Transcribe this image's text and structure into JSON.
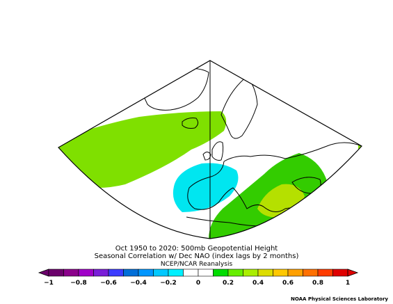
{
  "map": {
    "region": "North Atlantic / Europe (polar stereographic sector)",
    "field_colors": {
      "land_outline": "#000000",
      "positive_weak": "#7fe000",
      "positive_moderate": "#33cc00",
      "positive_strong": "#b5e000",
      "negative_weak": "#00e6f0"
    }
  },
  "titles": {
    "line1": "Oct 1950 to 2020: 500mb Geopotential Height",
    "line2": "Seasonal Correlation w/ Dec NAO (index lags by 2 months)",
    "line3": "NCEP/NCAR Reanalysis"
  },
  "colorbar": {
    "bins": [
      {
        "color": "#6b006b"
      },
      {
        "color": "#8b008b"
      },
      {
        "color": "#a000c8"
      },
      {
        "color": "#7a1ed8"
      },
      {
        "color": "#3c3cff"
      },
      {
        "color": "#006ed8"
      },
      {
        "color": "#0096ff"
      },
      {
        "color": "#00c8ff"
      },
      {
        "color": "#00f0ff"
      },
      {
        "color": "#ffffff"
      },
      {
        "color": "#ffffff"
      },
      {
        "color": "#00dd00"
      },
      {
        "color": "#66ee00"
      },
      {
        "color": "#aaee00"
      },
      {
        "color": "#dddd00"
      },
      {
        "color": "#ffc800"
      },
      {
        "color": "#ffa000"
      },
      {
        "color": "#ff7000"
      },
      {
        "color": "#ff3c00"
      },
      {
        "color": "#e00000"
      }
    ],
    "tick_labels": [
      "−1",
      "−0.8",
      "−0.6",
      "−0.4",
      "−0.2",
      "0",
      "0.2",
      "0.4",
      "0.6",
      "0.8",
      "1"
    ]
  },
  "credit": "NOAA Physical Sciences Laboratory"
}
